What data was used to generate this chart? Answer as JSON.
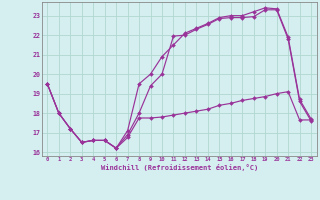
{
  "background_color": "#d5eef0",
  "grid_color": "#b0d8d0",
  "line_color": "#993399",
  "spine_color": "#888888",
  "hours": [
    0,
    1,
    2,
    3,
    4,
    5,
    6,
    7,
    8,
    9,
    10,
    11,
    12,
    13,
    14,
    15,
    16,
    17,
    18,
    19,
    20,
    21,
    22,
    23
  ],
  "line1": [
    19.5,
    18.0,
    17.2,
    16.5,
    16.6,
    16.6,
    16.2,
    16.9,
    18.0,
    19.4,
    20.0,
    21.95,
    22.0,
    22.3,
    22.55,
    22.85,
    22.9,
    22.9,
    22.95,
    23.3,
    23.3,
    21.8,
    18.6,
    17.6
  ],
  "line2": [
    19.5,
    18.0,
    17.2,
    16.5,
    16.6,
    16.6,
    16.2,
    17.1,
    19.5,
    20.0,
    20.9,
    21.5,
    22.1,
    22.35,
    22.6,
    22.9,
    23.0,
    23.0,
    23.2,
    23.4,
    23.35,
    21.9,
    18.7,
    17.7
  ],
  "line3": [
    19.5,
    18.0,
    17.2,
    16.5,
    16.6,
    16.6,
    16.2,
    16.75,
    17.75,
    17.75,
    17.8,
    17.9,
    18.0,
    18.1,
    18.2,
    18.4,
    18.5,
    18.65,
    18.75,
    18.85,
    19.0,
    19.1,
    17.65,
    17.65
  ],
  "ylim": [
    15.8,
    23.7
  ],
  "yticks": [
    16,
    17,
    18,
    19,
    20,
    21,
    22,
    23
  ],
  "xlim": [
    -0.5,
    23.5
  ],
  "xlabel": "Windchill (Refroidissement éolien,°C)"
}
